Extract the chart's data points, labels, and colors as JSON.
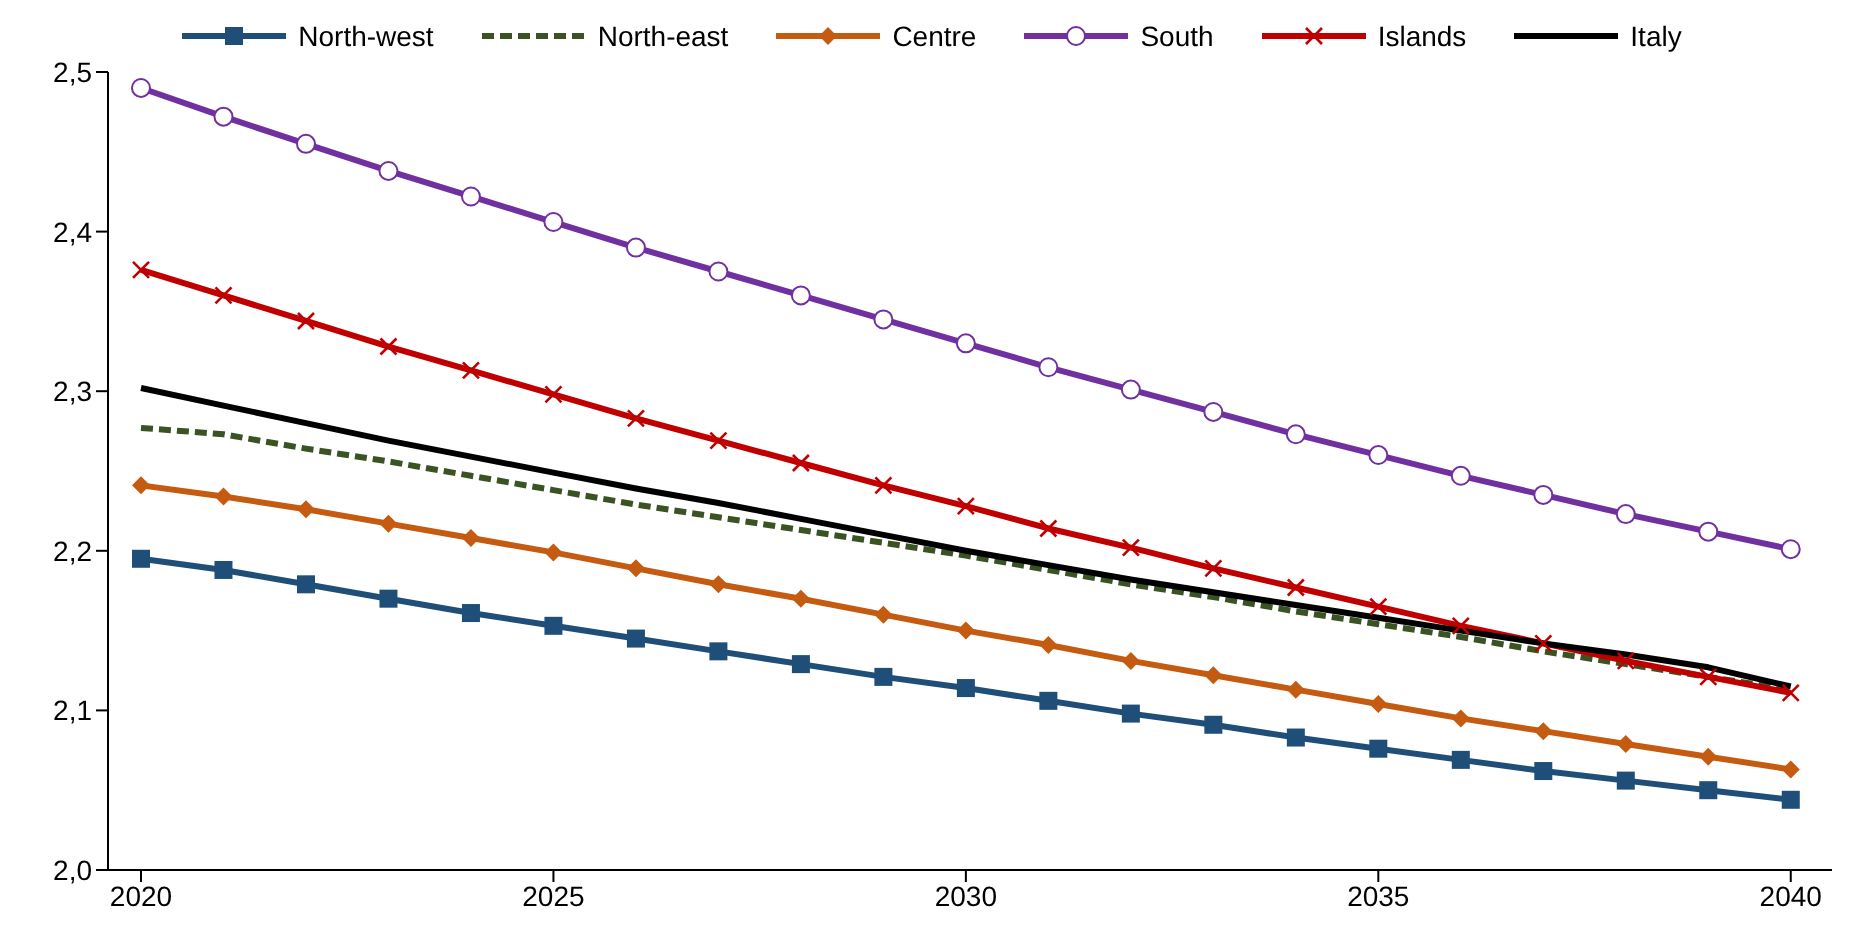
{
  "chart_data": {
    "type": "line",
    "x": [
      2020,
      2021,
      2022,
      2023,
      2024,
      2025,
      2026,
      2027,
      2028,
      2029,
      2030,
      2031,
      2032,
      2033,
      2034,
      2035,
      2036,
      2037,
      2038,
      2039,
      2040
    ],
    "series": [
      {
        "name": "North-west",
        "color": "#1f4e79",
        "marker": "square",
        "values": [
          2.195,
          2.188,
          2.179,
          2.17,
          2.161,
          2.153,
          2.145,
          2.137,
          2.129,
          2.121,
          2.114,
          2.106,
          2.098,
          2.091,
          2.083,
          2.076,
          2.069,
          2.062,
          2.056,
          2.05,
          2.044
        ]
      },
      {
        "name": "North-east",
        "color": "#3b5323",
        "marker": "none",
        "line_style": "dashed",
        "values": [
          2.277,
          2.273,
          2.264,
          2.256,
          2.247,
          2.238,
          2.229,
          2.221,
          2.213,
          2.205,
          2.197,
          2.188,
          2.179,
          2.171,
          2.162,
          2.154,
          2.146,
          2.137,
          2.129,
          2.121,
          2.113
        ]
      },
      {
        "name": "Centre",
        "color": "#c55a11",
        "marker": "diamond",
        "values": [
          2.241,
          2.234,
          2.226,
          2.217,
          2.208,
          2.199,
          2.189,
          2.179,
          2.17,
          2.16,
          2.15,
          2.141,
          2.131,
          2.122,
          2.113,
          2.104,
          2.095,
          2.087,
          2.079,
          2.071,
          2.063
        ]
      },
      {
        "name": "South",
        "color": "#7030a0",
        "marker": "circle",
        "values": [
          2.49,
          2.472,
          2.455,
          2.438,
          2.422,
          2.406,
          2.39,
          2.375,
          2.36,
          2.345,
          2.33,
          2.315,
          2.301,
          2.287,
          2.273,
          2.26,
          2.247,
          2.235,
          2.223,
          2.212,
          2.201
        ]
      },
      {
        "name": "Islands",
        "color": "#c00000",
        "marker": "cross",
        "values": [
          2.376,
          2.36,
          2.344,
          2.328,
          2.313,
          2.298,
          2.283,
          2.269,
          2.255,
          2.241,
          2.228,
          2.214,
          2.202,
          2.189,
          2.177,
          2.165,
          2.153,
          2.142,
          2.131,
          2.121,
          2.111
        ]
      },
      {
        "name": "Italy",
        "color": "#000000",
        "marker": "none",
        "values": [
          2.302,
          2.291,
          2.28,
          2.269,
          2.259,
          2.249,
          2.239,
          2.23,
          2.22,
          2.21,
          2.2,
          2.191,
          2.182,
          2.174,
          2.166,
          2.158,
          2.15,
          2.142,
          2.135,
          2.127,
          2.115
        ]
      }
    ],
    "xlim": [
      2019.6,
      2040.5
    ],
    "xticks": [
      2020,
      2025,
      2030,
      2035,
      2040
    ],
    "ylim": [
      2.0,
      2.5
    ],
    "yticks": [
      {
        "value": 2.0,
        "label": "2,0"
      },
      {
        "value": 2.1,
        "label": "2,1"
      },
      {
        "value": 2.2,
        "label": "2,2"
      },
      {
        "value": 2.3,
        "label": "2,3"
      },
      {
        "value": 2.4,
        "label": "2,4"
      },
      {
        "value": 2.5,
        "label": "2,5"
      }
    ],
    "grid": false,
    "legend": "top"
  }
}
